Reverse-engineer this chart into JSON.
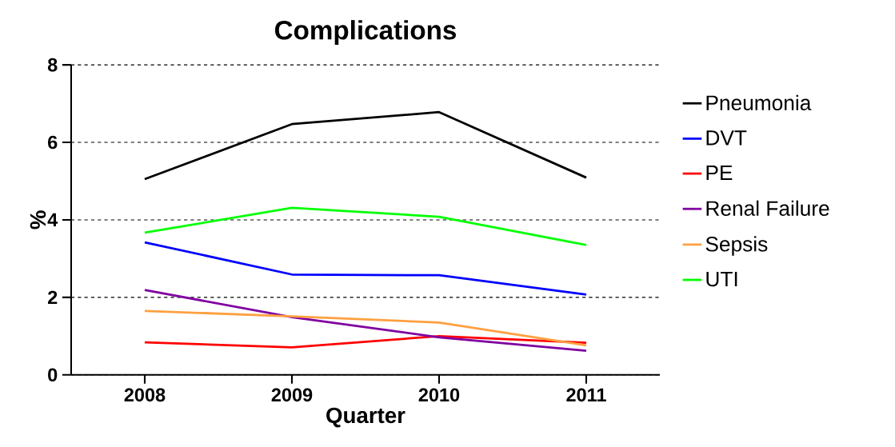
{
  "chart_data": {
    "type": "line",
    "title": "Complications",
    "xlabel": "Quarter",
    "ylabel": "%",
    "categories": [
      "2008",
      "2009",
      "2010",
      "2011"
    ],
    "series": [
      {
        "name": "Pneumonia",
        "color": "#000000",
        "values": [
          5.05,
          6.47,
          6.78,
          5.09
        ]
      },
      {
        "name": "DVT",
        "color": "#0000ff",
        "values": [
          3.42,
          2.59,
          2.57,
          2.07
        ]
      },
      {
        "name": "PE",
        "color": "#ff0000",
        "values": [
          0.84,
          0.71,
          1.0,
          0.83
        ]
      },
      {
        "name": "Renal Failure",
        "color": "#7f00a0",
        "values": [
          2.19,
          1.49,
          0.97,
          0.62
        ]
      },
      {
        "name": "Sepsis",
        "color": "#ffa040",
        "values": [
          1.65,
          1.51,
          1.35,
          0.76
        ]
      },
      {
        "name": "UTI",
        "color": "#00ff00",
        "values": [
          3.67,
          4.31,
          4.08,
          3.35
        ]
      }
    ],
    "ylim": [
      0,
      8
    ],
    "yticks": [
      0,
      2,
      4,
      6,
      8
    ],
    "grid": "y",
    "legend": "right",
    "marker": "none",
    "line_style": "solid"
  }
}
